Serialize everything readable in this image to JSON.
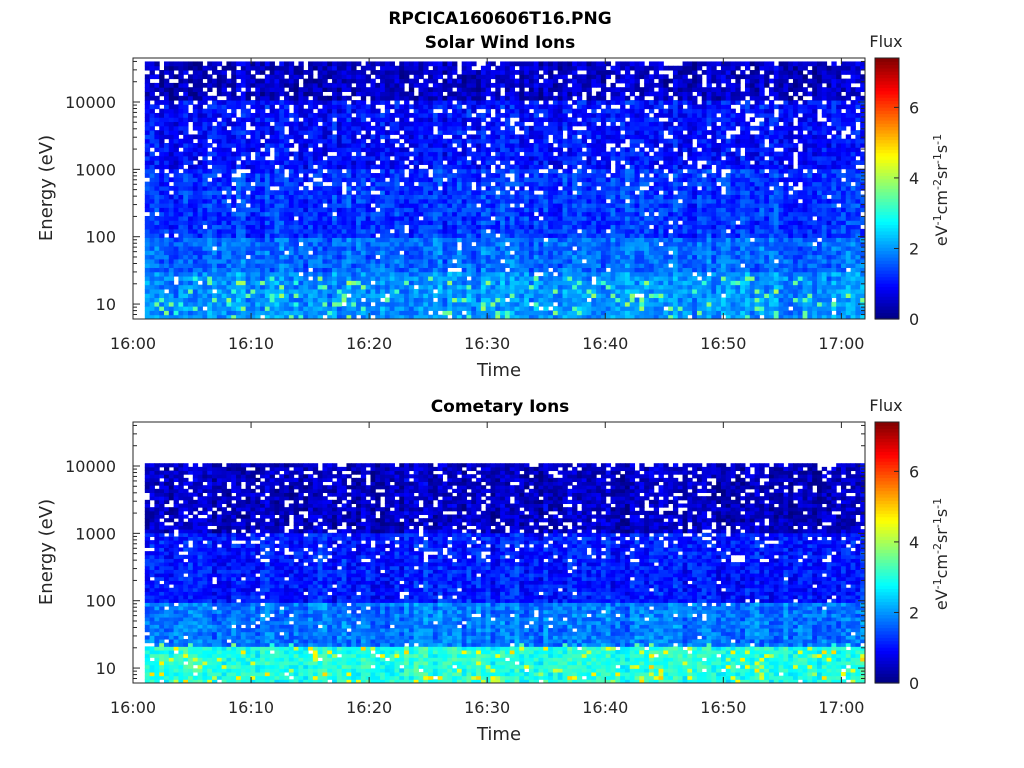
{
  "figure_title": "RPCICA160606T16.PNG",
  "chart_data": [
    {
      "type": "heatmap",
      "title": "Solar Wind Ions",
      "xlabel": "Time",
      "ylabel": "Energy (eV)",
      "y_scale": "log",
      "ylim": [
        6,
        45000
      ],
      "xlim": [
        "16:00",
        "17:02"
      ],
      "x_ticks": [
        "16:00",
        "16:10",
        "16:20",
        "16:30",
        "16:40",
        "16:50",
        "17:00"
      ],
      "y_ticks": [
        10,
        100,
        1000,
        10000
      ],
      "y_tick_labels": [
        "10",
        "100",
        "1000",
        "10000"
      ],
      "colorbar": {
        "title": "Flux",
        "label": "eV-1cm-2sr-1s-1",
        "range": [
          0,
          7.4
        ],
        "ticks": [
          "0",
          "2",
          "4",
          "6"
        ],
        "colormap": "jet"
      },
      "data_time_range": [
        "16:01",
        "17:02"
      ],
      "data_energy_range": [
        6,
        40000
      ],
      "description_levels": [
        {
          "energy_band": "10000-40000",
          "flux": 0.5
        },
        {
          "energy_band": "1000-10000",
          "flux": 1.0
        },
        {
          "energy_band": "100-1000",
          "flux": 1.3
        },
        {
          "energy_band": "30-100",
          "flux": 1.7
        },
        {
          "energy_band": "6-30",
          "flux": 2.0
        }
      ]
    },
    {
      "type": "heatmap",
      "title": "Cometary Ions",
      "xlabel": "Time",
      "ylabel": "Energy (eV)",
      "y_scale": "log",
      "ylim": [
        6,
        45000
      ],
      "xlim": [
        "16:00",
        "17:02"
      ],
      "x_ticks": [
        "16:00",
        "16:10",
        "16:20",
        "16:30",
        "16:40",
        "16:50",
        "17:00"
      ],
      "y_ticks": [
        10,
        100,
        1000,
        10000
      ],
      "y_tick_labels": [
        "10",
        "100",
        "1000",
        "10000"
      ],
      "colorbar": {
        "title": "Flux",
        "label": "eV-1cm-2sr-1s-1",
        "range": [
          0,
          7.4
        ],
        "ticks": [
          "0",
          "2",
          "4",
          "6"
        ],
        "colormap": "jet"
      },
      "data_time_range": [
        "16:01",
        "17:02"
      ],
      "data_energy_range": [
        6,
        11000
      ],
      "description_levels": [
        {
          "energy_band": "1000-11000",
          "flux": 0.5
        },
        {
          "energy_band": "100-1000",
          "flux": 1.1
        },
        {
          "energy_band": "20-100",
          "flux": 1.8
        },
        {
          "energy_band": "6-20",
          "flux": 3.0
        }
      ]
    }
  ]
}
